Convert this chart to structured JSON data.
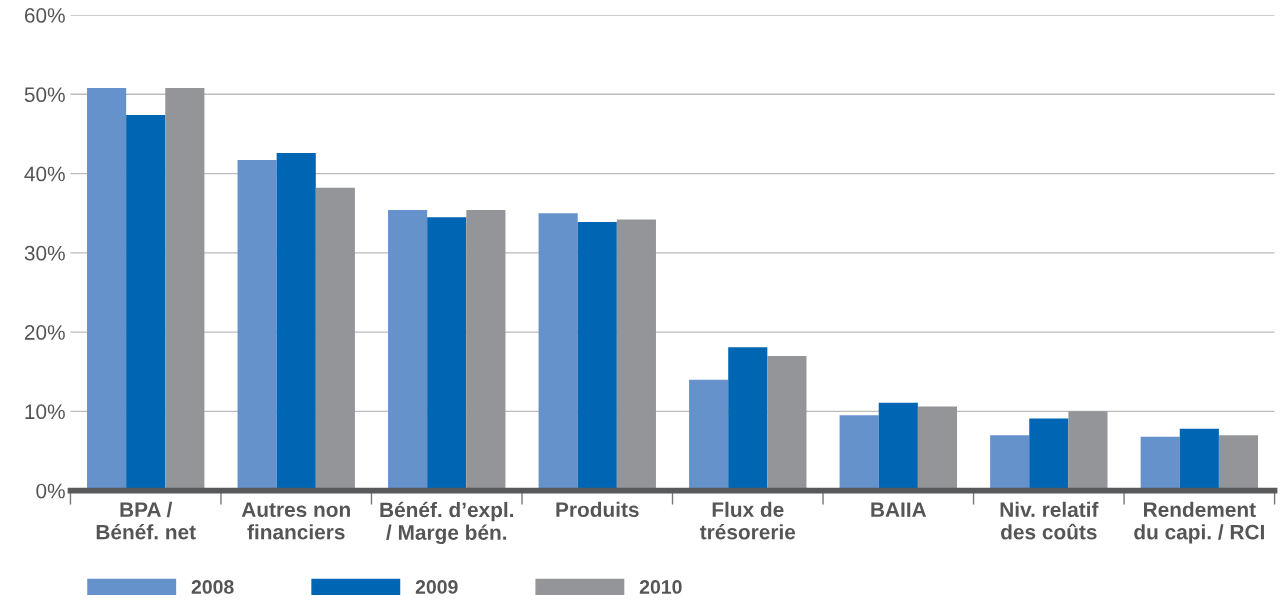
{
  "chart_data": {
    "type": "bar",
    "categories": [
      "BPA /\nBénéf. net",
      "Autres non\nfinanciers",
      "Bénéf. d’expl.\n/ Marge bén.",
      "Produits",
      "Flux de\ntrésorerie",
      "BAIIA",
      "Niv. relatif\ndes coûts",
      "Rendement\ndu capi. / RCI"
    ],
    "series": [
      {
        "name": "2008",
        "color": "#6692cc",
        "values": [
          50.8,
          41.7,
          35.4,
          35.0,
          14.0,
          9.5,
          7.0,
          6.8
        ]
      },
      {
        "name": "2009",
        "color": "#0066b3",
        "values": [
          47.4,
          42.6,
          34.5,
          33.9,
          18.1,
          11.1,
          9.1,
          7.8
        ]
      },
      {
        "name": "2010",
        "color": "#939598",
        "values": [
          50.8,
          38.2,
          35.4,
          34.2,
          17.0,
          10.6,
          10.0,
          7.0
        ]
      }
    ],
    "ylim": [
      0,
      60
    ],
    "yticks": [
      {
        "value": 0,
        "label": "0%"
      },
      {
        "value": 10,
        "label": "10%"
      },
      {
        "value": 20,
        "label": "20%"
      },
      {
        "value": 30,
        "label": "30%"
      },
      {
        "value": 40,
        "label": "40%"
      },
      {
        "value": 50,
        "label": "50%"
      },
      {
        "value": 60,
        "label": "60%"
      }
    ],
    "grid": "y",
    "legend": "bottom"
  }
}
